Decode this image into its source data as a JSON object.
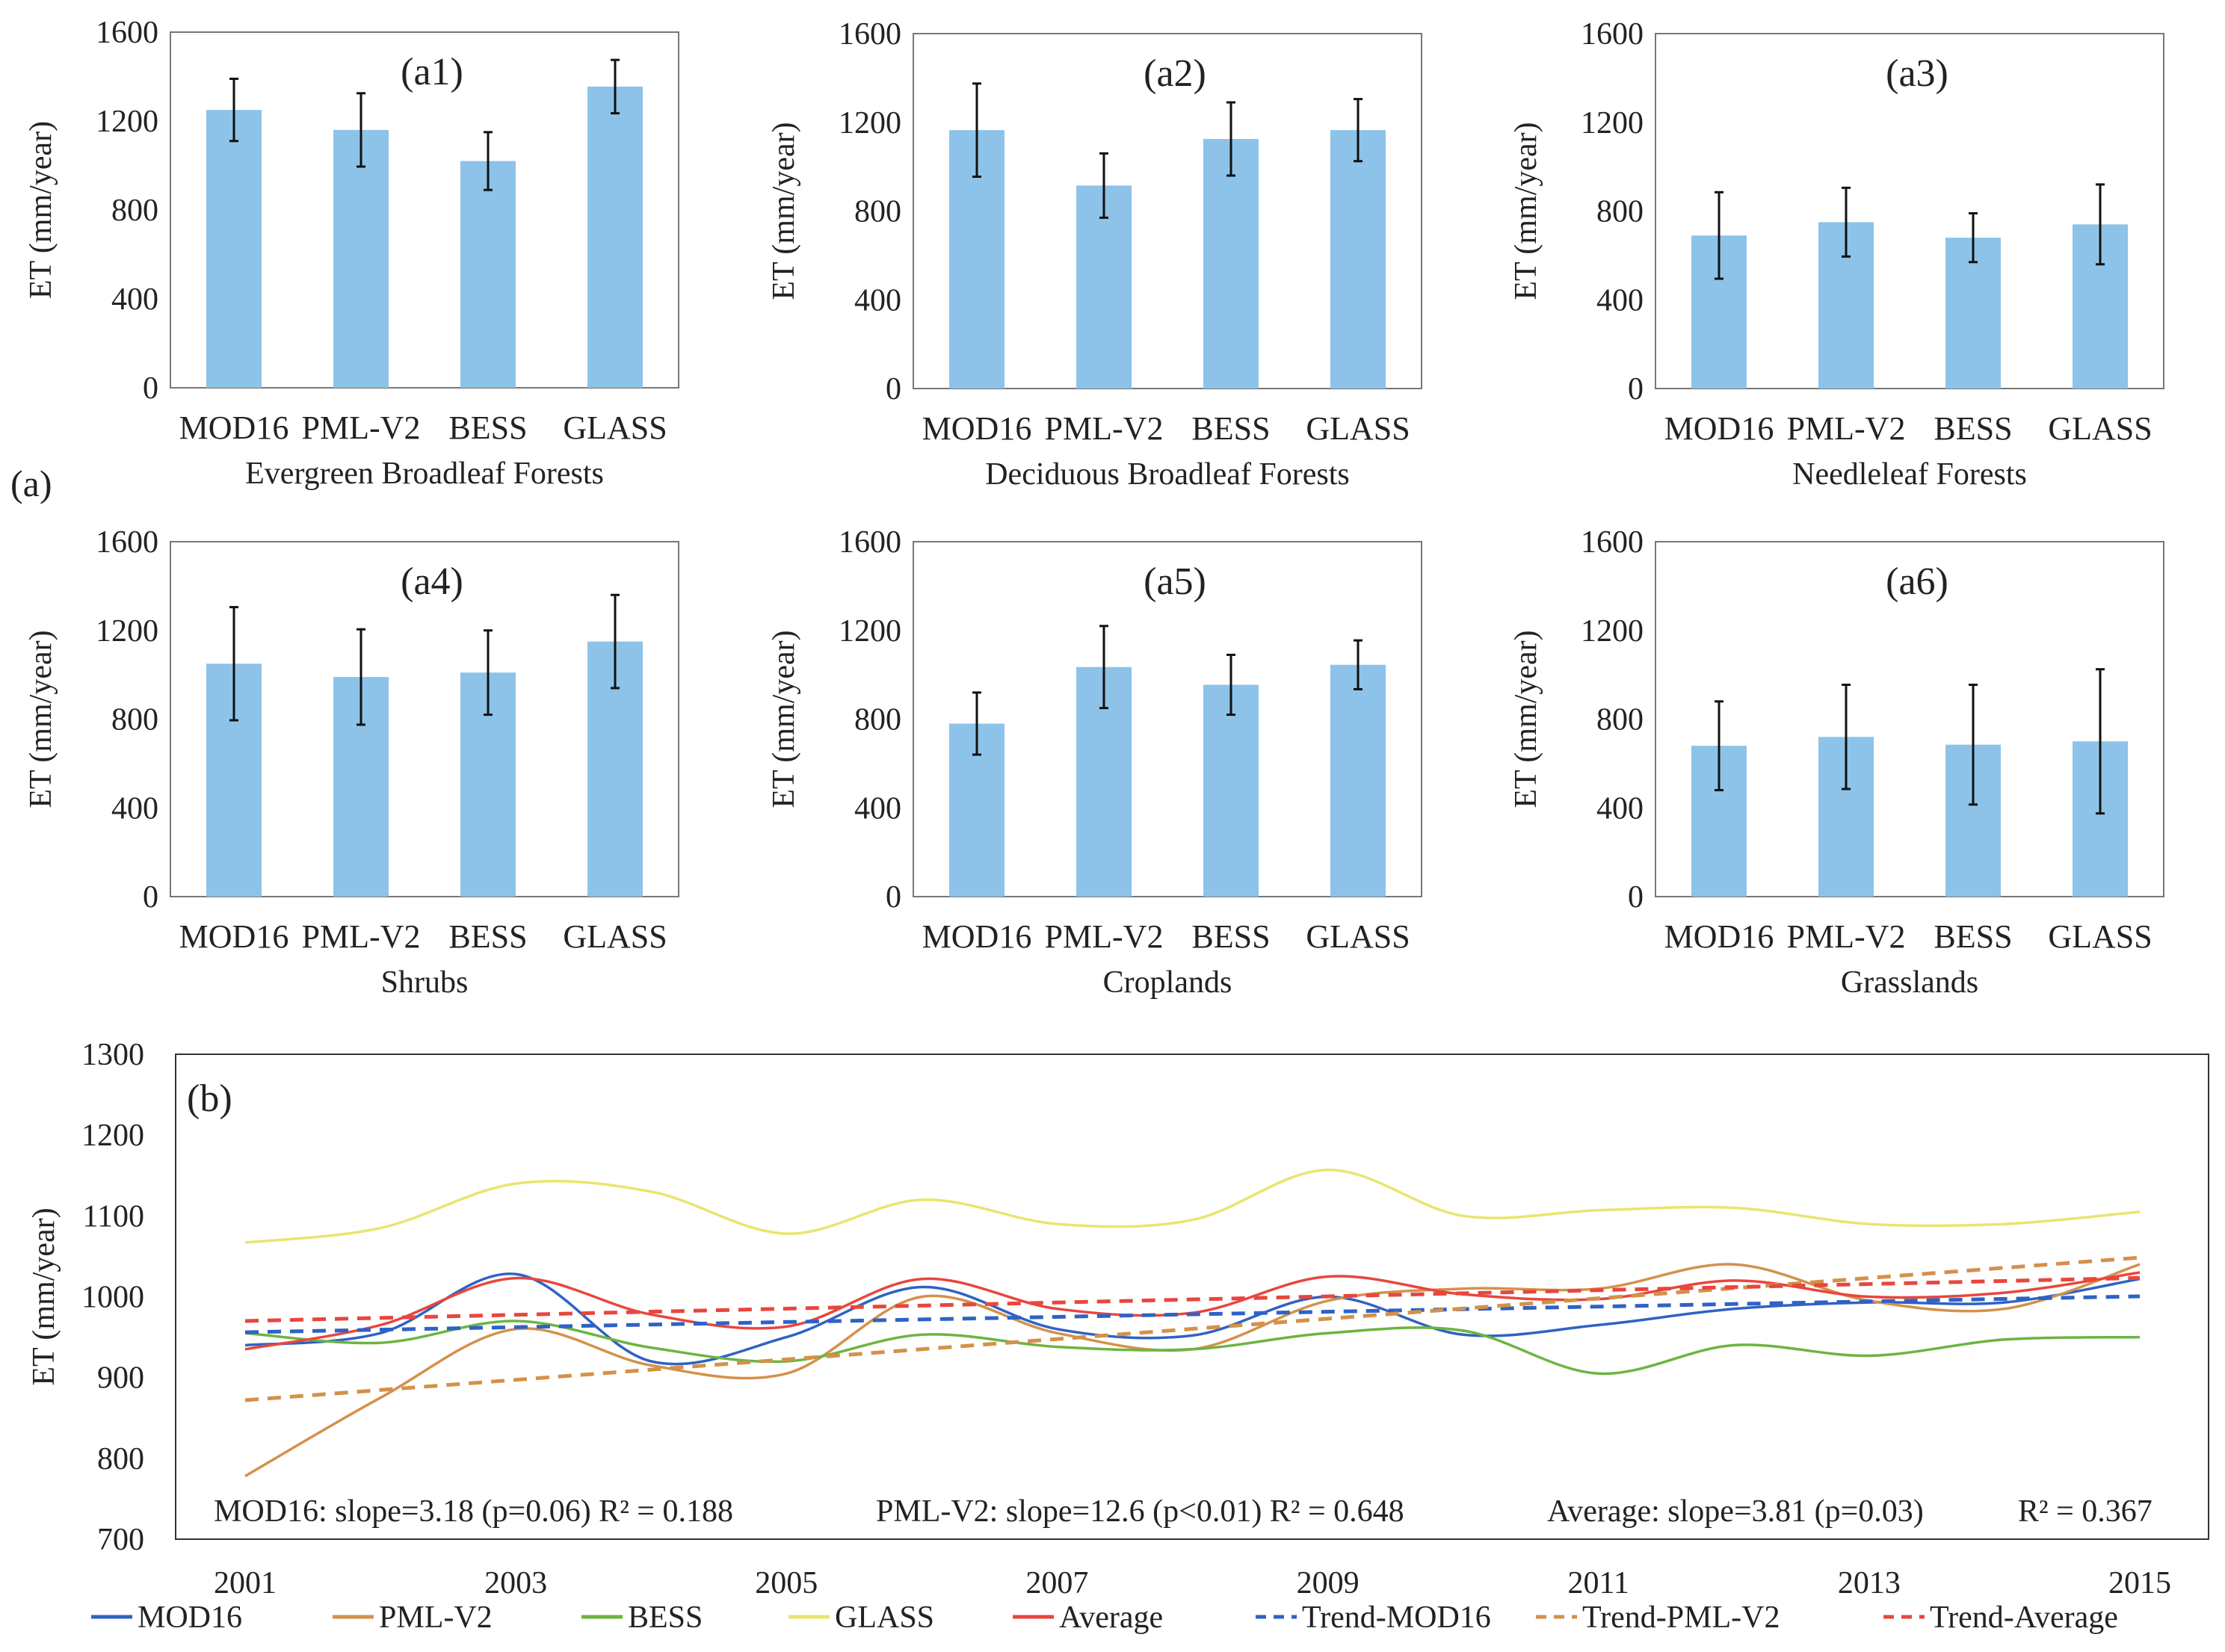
{
  "panel_group_label": "(a)",
  "chart_data": [
    {
      "id": "a1",
      "type": "bar",
      "panel_label": "(a1)",
      "title": "Evergreen Broadleaf Forests",
      "categories": [
        "MOD16",
        "PML-V2",
        "BESS",
        "GLASS"
      ],
      "values": [
        1250,
        1160,
        1020,
        1355
      ],
      "error": [
        140,
        165,
        130,
        120
      ],
      "ylabel": "ET (mm/year)",
      "ylim": [
        0,
        1600
      ],
      "yticks": [
        0,
        400,
        800,
        1200,
        1600
      ],
      "color": "#8dc3e8"
    },
    {
      "id": "a2",
      "type": "bar",
      "panel_label": "(a2)",
      "title": "Deciduous Broadleaf Forests",
      "categories": [
        "MOD16",
        "PML-V2",
        "BESS",
        "GLASS"
      ],
      "values": [
        1165,
        915,
        1125,
        1165
      ],
      "error": [
        210,
        145,
        165,
        140
      ],
      "ylabel": "ET (mm/year)",
      "ylim": [
        0,
        1600
      ],
      "yticks": [
        0,
        400,
        800,
        1200,
        1600
      ],
      "color": "#8dc3e8"
    },
    {
      "id": "a3",
      "type": "bar",
      "panel_label": "(a3)",
      "title": "Needleleaf Forests",
      "categories": [
        "MOD16",
        "PML-V2",
        "BESS",
        "GLASS"
      ],
      "values": [
        690,
        750,
        680,
        740
      ],
      "error": [
        195,
        155,
        110,
        180
      ],
      "ylabel": "ET (mm/year)",
      "ylim": [
        0,
        1600
      ],
      "yticks": [
        0,
        400,
        800,
        1200,
        1600
      ],
      "color": "#8dc3e8"
    },
    {
      "id": "a4",
      "type": "bar",
      "panel_label": "(a4)",
      "title": "Shrubs",
      "categories": [
        "MOD16",
        "PML-V2",
        "BESS",
        "GLASS"
      ],
      "values": [
        1050,
        990,
        1010,
        1150
      ],
      "error": [
        255,
        215,
        190,
        210
      ],
      "ylabel": "ET (mm/year)",
      "ylim": [
        0,
        1600
      ],
      "yticks": [
        0,
        400,
        800,
        1200,
        1600
      ],
      "color": "#8dc3e8"
    },
    {
      "id": "a5",
      "type": "bar",
      "panel_label": "(a5)",
      "title": "Croplands",
      "categories": [
        "MOD16",
        "PML-V2",
        "BESS",
        "GLASS"
      ],
      "values": [
        780,
        1035,
        955,
        1045
      ],
      "error": [
        140,
        185,
        135,
        110
      ],
      "ylabel": "ET (mm/year)",
      "ylim": [
        0,
        1600
      ],
      "yticks": [
        0,
        400,
        800,
        1200,
        1600
      ],
      "color": "#8dc3e8"
    },
    {
      "id": "a6",
      "type": "bar",
      "panel_label": "(a6)",
      "title": "Grasslands",
      "categories": [
        "MOD16",
        "PML-V2",
        "BESS",
        "GLASS"
      ],
      "values": [
        680,
        720,
        685,
        700
      ],
      "error": [
        200,
        235,
        270,
        325
      ],
      "ylabel": "ET (mm/year)",
      "ylim": [
        0,
        1600
      ],
      "yticks": [
        0,
        400,
        800,
        1200,
        1600
      ],
      "color": "#8dc3e8"
    },
    {
      "id": "b",
      "type": "line",
      "panel_label": "(b)",
      "x": [
        2001,
        2002,
        2003,
        2004,
        2005,
        2006,
        2007,
        2008,
        2009,
        2010,
        2011,
        2012,
        2013,
        2014,
        2015
      ],
      "xticks": [
        "2001",
        "2003",
        "2005",
        "2007",
        "2009",
        "2011",
        "2013",
        "2015"
      ],
      "ylabel": "ET (mm/year)",
      "ylim": [
        700,
        1300
      ],
      "yticks": [
        700,
        800,
        900,
        1000,
        1100,
        1200,
        1300
      ],
      "series": [
        {
          "name": "MOD16",
          "color": "#2f62c4",
          "dash": false,
          "values": [
            940,
            955,
            1028,
            920,
            950,
            1012,
            960,
            952,
            1000,
            953,
            965,
            985,
            993,
            993,
            1022
          ]
        },
        {
          "name": "PML-V2",
          "color": "#d4914a",
          "dash": false,
          "values": [
            778,
            875,
            960,
            915,
            905,
            1000,
            955,
            935,
            995,
            1010,
            1010,
            1040,
            995,
            985,
            1040
          ]
        },
        {
          "name": "BESS",
          "color": "#6cb442",
          "dash": false,
          "values": [
            955,
            943,
            970,
            937,
            920,
            953,
            938,
            935,
            955,
            958,
            905,
            940,
            927,
            947,
            950
          ]
        },
        {
          "name": "GLASS",
          "color": "#e9e56e",
          "dash": false,
          "values": [
            1067,
            1085,
            1140,
            1130,
            1078,
            1120,
            1090,
            1095,
            1157,
            1100,
            1107,
            1110,
            1090,
            1090,
            1105
          ]
        },
        {
          "name": "Average",
          "color": "#e8463e",
          "dash": false,
          "values": [
            935,
            965,
            1023,
            978,
            963,
            1022,
            985,
            980,
            1025,
            1003,
            997,
            1020,
            1000,
            1005,
            1030
          ]
        },
        {
          "name": "Trend-MOD16",
          "color": "#2f62c4",
          "dash": true,
          "values": [
            956,
            959.2,
            962.4,
            965.5,
            968.7,
            971.9,
            975.1,
            978.3,
            981.4,
            984.6,
            987.8,
            991.0,
            994.2,
            997.3,
            1000.5
          ]
        },
        {
          "name": "Trend-PML-V2",
          "color": "#d4914a",
          "dash": true,
          "values": [
            872,
            884.6,
            897.2,
            909.8,
            922.4,
            935.0,
            947.6,
            960.2,
            972.8,
            985.4,
            998.0,
            1010.6,
            1023.2,
            1035.8,
            1048.4
          ]
        },
        {
          "name": "Trend-Average",
          "color": "#e8463e",
          "dash": true,
          "values": [
            970,
            973.8,
            977.6,
            981.4,
            985.2,
            989.1,
            992.9,
            996.7,
            1000.5,
            1004.3,
            1008.1,
            1011.9,
            1015.7,
            1019.5,
            1023.3
          ]
        }
      ],
      "annotations": [
        "MOD16: slope=3.18 (p=0.06)  R² = 0.188",
        "PML-V2: slope=12.6 (p<0.01)  R² = 0.648",
        "Average: slope=3.81 (p=0.03)",
        "R² = 0.367"
      ],
      "legend_position": "bottom"
    }
  ]
}
